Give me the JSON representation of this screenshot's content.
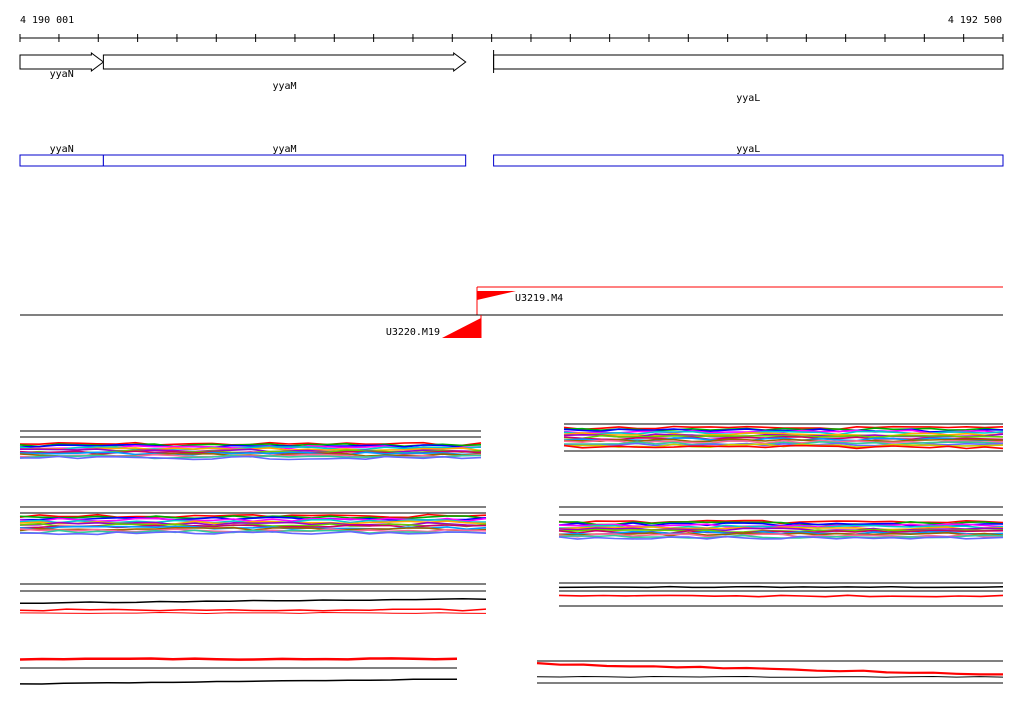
{
  "ruler": {
    "start_label": "4 190 001",
    "end_label": "4 192 500",
    "start": 4190001,
    "end": 4192500,
    "major_tick_interval": 100
  },
  "genes_track": [
    {
      "name": "yyaN",
      "start": 4190001,
      "end": 4190213,
      "strand": "+"
    },
    {
      "name": "yyaM",
      "start": 4190213,
      "end": 4191134,
      "strand": "+"
    },
    {
      "name": "yyaL",
      "start": 4191205,
      "end": 4192500,
      "strand": "+"
    }
  ],
  "cds_track": [
    {
      "name": "yyaN",
      "start": 4190001,
      "end": 4190213
    },
    {
      "name": "yyaM",
      "start": 4190213,
      "end": 4191134
    },
    {
      "name": "yyaL",
      "start": 4191205,
      "end": 4192500
    }
  ],
  "transcripts": [
    {
      "name": "U3219.M4",
      "start": 4191146,
      "end": 4192500,
      "strand": "+",
      "color": "#ff0000"
    },
    {
      "name": "U3220.M19",
      "start": 4190001,
      "end": 4191176,
      "strand": "-",
      "color": "#000000"
    }
  ],
  "colors": {
    "gene_outline": "#000000",
    "cds_outline": "#0000cc",
    "marker": "#ff0000"
  }
}
